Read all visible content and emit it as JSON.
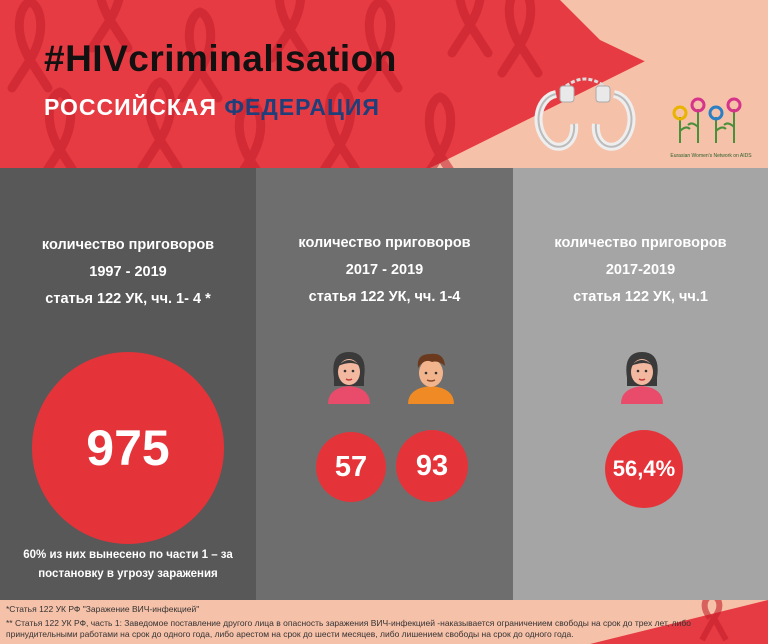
{
  "header": {
    "hashtag": "#HIVcriminalisation",
    "country_part1": "РОССИЙСКАЯ",
    "country_part2": "ФЕДЕРАЦИЯ",
    "logo_text": "Eurasian Women's Network on AIDS",
    "colors": {
      "red": "#e4343a",
      "peach": "#f6c1a9",
      "navy": "#1f3f7a"
    }
  },
  "panels": [
    {
      "heading": [
        "количество приговоров",
        "1997 - 2019",
        "статья 122 УК, чч. 1- 4 *"
      ],
      "value": "975",
      "note": [
        "60% из них вынесено по части 1 – за",
        "постановку в угрозу заражения"
      ]
    },
    {
      "heading": [
        "количество приговоров",
        "2017 - 2019",
        "статья 122 УК, чч. 1-4"
      ],
      "female_value": "57",
      "male_value": "93",
      "icons": [
        "woman-icon",
        "man-icon"
      ]
    },
    {
      "heading": [
        "количество приговоров",
        "2017-2019",
        "статья 122 УК, чч.1"
      ],
      "female_value": "56,4%",
      "icons": [
        "woman-icon"
      ]
    }
  ],
  "footnotes": {
    "line1": "*Статья 122 УК РФ \"Заражение ВИЧ-инфекцией\"",
    "line2": "** Статья 122 УК РФ, часть 1: Заведомое поставление другого лица в опасность заражения ВИЧ-инфекцией -наказывается ограничением свободы на срок до трех лет, либо",
    "line3": "принудительными работами на срок до одного года, либо арестом на срок до шести месяцев, либо лишением свободы на срок до одного года."
  }
}
